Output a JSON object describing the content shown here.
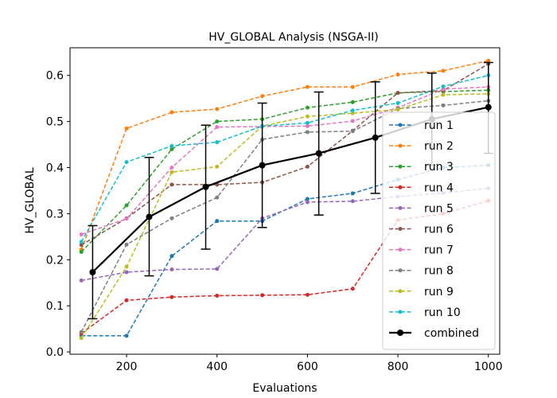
{
  "chart_data": {
    "type": "line",
    "title": "HV_GLOBAL Analysis (NSGA-II)",
    "xlabel": "Evaluations",
    "ylabel": "HV_GLOBAL",
    "xlim": [
      75,
      1025
    ],
    "ylim": [
      -0.005,
      0.66
    ],
    "xticks": [
      200,
      400,
      600,
      800,
      1000
    ],
    "yticks": [
      0.0,
      0.1,
      0.2,
      0.3,
      0.4,
      0.5,
      0.6
    ],
    "grid": false,
    "legend_position": "lower right",
    "x": [
      100,
      200,
      300,
      400,
      500,
      600,
      700,
      800,
      900,
      1000
    ],
    "series": [
      {
        "name": "run 1",
        "color": "#1f77b4",
        "values": [
          0.035,
          0.035,
          0.208,
          0.284,
          0.284,
          0.332,
          0.344,
          0.374,
          0.4,
          0.405
        ]
      },
      {
        "name": "run 2",
        "color": "#ff7f0e",
        "values": [
          0.222,
          0.485,
          0.52,
          0.527,
          0.555,
          0.575,
          0.575,
          0.602,
          0.61,
          0.632
        ]
      },
      {
        "name": "run 3",
        "color": "#2ca02c",
        "values": [
          0.217,
          0.318,
          0.44,
          0.5,
          0.505,
          0.53,
          0.542,
          0.562,
          0.565,
          0.568
        ]
      },
      {
        "name": "run 4",
        "color": "#d62728",
        "values": [
          0.04,
          0.112,
          0.119,
          0.122,
          0.123,
          0.124,
          0.137,
          0.286,
          0.3,
          0.328
        ]
      },
      {
        "name": "run 5",
        "color": "#9467bd",
        "values": [
          0.155,
          0.173,
          0.179,
          0.18,
          0.29,
          0.325,
          0.327,
          0.337,
          0.345,
          0.355
        ]
      },
      {
        "name": "run 6",
        "color": "#8c564b",
        "values": [
          0.232,
          0.29,
          0.363,
          0.363,
          0.368,
          0.402,
          0.48,
          0.562,
          0.567,
          0.625
        ]
      },
      {
        "name": "run 7",
        "color": "#e377c2",
        "values": [
          0.255,
          0.289,
          0.4,
          0.488,
          0.489,
          0.49,
          0.501,
          0.53,
          0.57,
          0.575
        ]
      },
      {
        "name": "run 8",
        "color": "#7f7f7f",
        "values": [
          0.043,
          0.233,
          0.29,
          0.335,
          0.461,
          0.477,
          0.479,
          0.528,
          0.535,
          0.545
        ]
      },
      {
        "name": "run 9",
        "color": "#bcbd22",
        "values": [
          0.03,
          0.185,
          0.39,
          0.402,
          0.49,
          0.511,
          0.518,
          0.526,
          0.558,
          0.56
        ]
      },
      {
        "name": "run 10",
        "color": "#17becf",
        "values": [
          0.239,
          0.412,
          0.447,
          0.455,
          0.49,
          0.497,
          0.524,
          0.54,
          0.576,
          0.6
        ]
      }
    ],
    "combined": {
      "name": "combined",
      "color": "#000000",
      "x": [
        125,
        250,
        375,
        500,
        625,
        750,
        875,
        1000
      ],
      "values": [
        0.173,
        0.293,
        0.358,
        0.405,
        0.431,
        0.465,
        0.505,
        0.531
      ],
      "err_low": [
        0.072,
        0.165,
        0.223,
        0.27,
        0.297,
        0.344,
        0.405,
        0.431
      ],
      "err_high": [
        0.274,
        0.422,
        0.492,
        0.54,
        0.564,
        0.586,
        0.605,
        0.628
      ]
    }
  }
}
